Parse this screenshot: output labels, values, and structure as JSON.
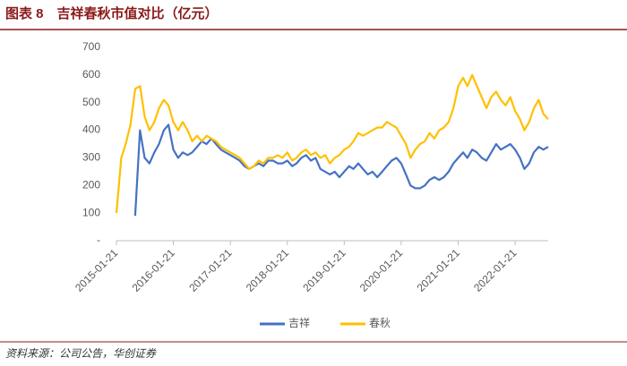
{
  "chart_data": {
    "type": "line",
    "title": "图表 8　吉祥春秋市值对比（亿元）",
    "source": "资料来源：公司公告，华创证券",
    "x": [
      "2015-01-21",
      "2015-02-21",
      "2015-03-21",
      "2015-04-21",
      "2015-05-21",
      "2015-06-21",
      "2015-07-21",
      "2015-08-21",
      "2015-09-21",
      "2015-10-21",
      "2015-11-21",
      "2015-12-21",
      "2016-01-21",
      "2016-02-21",
      "2016-03-21",
      "2016-04-21",
      "2016-05-21",
      "2016-06-21",
      "2016-07-21",
      "2016-08-21",
      "2016-09-21",
      "2016-10-21",
      "2016-11-21",
      "2016-12-21",
      "2017-01-21",
      "2017-02-21",
      "2017-03-21",
      "2017-04-21",
      "2017-05-21",
      "2017-06-21",
      "2017-07-21",
      "2017-08-21",
      "2017-09-21",
      "2017-10-21",
      "2017-11-21",
      "2017-12-21",
      "2018-01-21",
      "2018-02-21",
      "2018-03-21",
      "2018-04-21",
      "2018-05-21",
      "2018-06-21",
      "2018-07-21",
      "2018-08-21",
      "2018-09-21",
      "2018-10-21",
      "2018-11-21",
      "2018-12-21",
      "2019-01-21",
      "2019-02-21",
      "2019-03-21",
      "2019-04-21",
      "2019-05-21",
      "2019-06-21",
      "2019-07-21",
      "2019-08-21",
      "2019-09-21",
      "2019-10-21",
      "2019-11-21",
      "2019-12-21",
      "2020-01-21",
      "2020-02-21",
      "2020-03-21",
      "2020-04-21",
      "2020-05-21",
      "2020-06-21",
      "2020-07-21",
      "2020-08-21",
      "2020-09-21",
      "2020-10-21",
      "2020-11-21",
      "2020-12-21",
      "2021-01-21",
      "2021-02-21",
      "2021-03-21",
      "2021-04-21",
      "2021-05-21",
      "2021-06-21",
      "2021-07-21",
      "2021-08-21",
      "2021-09-21",
      "2021-10-21",
      "2021-11-21",
      "2021-12-21",
      "2022-01-21",
      "2022-02-21",
      "2022-03-21",
      "2022-04-21",
      "2022-05-21",
      "2022-06-21",
      "2022-07-21",
      "2022-08-21"
    ],
    "series": [
      {
        "name": "吉祥",
        "color": "#4472c4",
        "values": [
          null,
          null,
          null,
          null,
          90,
          400,
          300,
          280,
          320,
          350,
          400,
          420,
          330,
          300,
          320,
          310,
          320,
          340,
          360,
          350,
          370,
          350,
          330,
          320,
          310,
          300,
          290,
          270,
          260,
          270,
          280,
          270,
          290,
          290,
          280,
          280,
          290,
          270,
          280,
          300,
          310,
          290,
          300,
          260,
          250,
          240,
          250,
          230,
          250,
          270,
          260,
          280,
          260,
          240,
          250,
          230,
          250,
          270,
          290,
          300,
          280,
          240,
          200,
          190,
          190,
          200,
          220,
          230,
          220,
          230,
          250,
          280,
          300,
          320,
          300,
          330,
          320,
          300,
          290,
          320,
          350,
          330,
          340,
          350,
          330,
          300,
          260,
          280,
          320,
          340,
          330,
          340
        ]
      },
      {
        "name": "春秋",
        "color": "#ffc000",
        "values": [
          100,
          300,
          350,
          420,
          550,
          560,
          450,
          400,
          430,
          480,
          510,
          490,
          430,
          400,
          430,
          400,
          360,
          380,
          360,
          380,
          370,
          360,
          340,
          330,
          320,
          310,
          300,
          280,
          260,
          270,
          290,
          280,
          300,
          300,
          310,
          300,
          320,
          290,
          300,
          320,
          330,
          310,
          320,
          300,
          310,
          280,
          300,
          310,
          330,
          340,
          360,
          390,
          380,
          390,
          400,
          410,
          410,
          430,
          420,
          410,
          380,
          350,
          300,
          330,
          350,
          360,
          390,
          370,
          400,
          410,
          430,
          480,
          560,
          590,
          560,
          600,
          560,
          520,
          480,
          520,
          540,
          510,
          490,
          520,
          470,
          440,
          400,
          430,
          480,
          510,
          460,
          440
        ]
      }
    ],
    "xlim": [
      "2015-01-21",
      "2022-08-21"
    ],
    "xticks": [
      "2015-01-21",
      "2016-01-21",
      "2017-01-21",
      "2018-01-21",
      "2019-01-21",
      "2020-01-21",
      "2021-01-21",
      "2022-01-21"
    ],
    "ylim": [
      0,
      700
    ],
    "yticks": [
      {
        "value": 0,
        "label": "-"
      },
      100,
      200,
      300,
      400,
      500,
      600,
      700
    ]
  }
}
